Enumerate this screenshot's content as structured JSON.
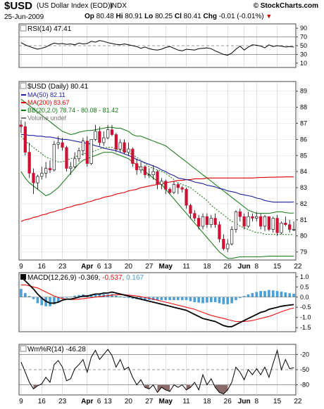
{
  "header": {
    "symbol": "$USD",
    "name": "(US Dollar Index (EOD))",
    "exchange": "INDX",
    "site": "© StockCharts.com",
    "date": "25-Jun-2009",
    "open_label": "Op",
    "open": "80.48",
    "high_label": "Hi",
    "high": "80.91",
    "low_label": "Lo",
    "low": "80.25",
    "close_label": "Cl",
    "close": "80.41",
    "change_label": "Chg",
    "change": "-0.01 (-0.01%)"
  },
  "colors": {
    "up": "#ffffff",
    "down": "#cc1133",
    "ma50": "#1e1e9e",
    "ma200": "#dd0000",
    "bb": "#117711",
    "macd": "#000000",
    "signal": "#ee1111",
    "hist": "#4aa0d8",
    "rsi_over": "#9a7272",
    "wpr_over": "#8a6a6a",
    "wpr_under": "#5c8f5c"
  },
  "chart_data": [
    {
      "type": "line",
      "title": "RSI(14) 47.41",
      "yticks": [
        90,
        70,
        50,
        30,
        10
      ],
      "ylim": [
        0,
        100
      ],
      "guides": [
        70,
        50,
        30
      ],
      "values": [
        57,
        52,
        48,
        45,
        42,
        44,
        47,
        52,
        56,
        54,
        55,
        53,
        54,
        52,
        56,
        54,
        55,
        60,
        58,
        62,
        60,
        57,
        55,
        53,
        52,
        54,
        52,
        50,
        48,
        44,
        47,
        43,
        41,
        40,
        42,
        46,
        48,
        44,
        40,
        38,
        42,
        41,
        40,
        43,
        44,
        45,
        43,
        38,
        34,
        30,
        28,
        33,
        42,
        49,
        40,
        47,
        52,
        51,
        49,
        45,
        52,
        48,
        50,
        49,
        47,
        48,
        47
      ]
    },
    {
      "type": "candlestick",
      "title": "$USD (Daily) 80.41",
      "legend": [
        {
          "name": "MA(50) 82.11",
          "color": "#1e1e9e"
        },
        {
          "name": "MA(200) 83.67",
          "color": "#dd0000"
        },
        {
          "name": "BB(20,2.0) 78.74 - 80.08 - 81.42",
          "color": "#117711"
        },
        {
          "name": "Volume undef",
          "color": "#777777"
        }
      ],
      "yticks": [
        89,
        88,
        87,
        86,
        85,
        84,
        83,
        82,
        81,
        80,
        79
      ],
      "ylim": [
        78.5,
        89.6
      ],
      "xticks": [
        {
          "label": "9",
          "i": 0
        },
        {
          "label": "16",
          "i": 5
        },
        {
          "label": "23",
          "i": 10
        },
        {
          "label": "Apr",
          "i": 16
        },
        {
          "label": "6",
          "i": 16
        },
        {
          "label": "13",
          "i": 21
        },
        {
          "label": "20",
          "i": 26
        },
        {
          "label": "27",
          "i": 31
        },
        {
          "label": "May",
          "i": 35
        },
        {
          "label": "11",
          "i": 40
        },
        {
          "label": "18",
          "i": 45
        },
        {
          "label": "26",
          "i": 50
        },
        {
          "label": "Jun",
          "i": 54
        },
        {
          "label": "8",
          "i": 57
        },
        {
          "label": "15",
          "i": 62
        },
        {
          "label": "22",
          "i": 67
        }
      ],
      "open": [
        86.9,
        86.8,
        85.2,
        83.9,
        83.3,
        83.7,
        83.9,
        84.2,
        84.1,
        85.7,
        85.8,
        85.5,
        84.2,
        84.3,
        84.8,
        85.3,
        85.9,
        84.5,
        86.0,
        86.5,
        85.8,
        86.1,
        86.6,
        86.3,
        85.4,
        85.8,
        85.2,
        85.4,
        84.5,
        84.1,
        84.3,
        83.8,
        83.8,
        84.0,
        83.2,
        83.4,
        82.9,
        82.7,
        83.2,
        83.0,
        82.9,
        81.9,
        81.4,
        81.1,
        80.6,
        81.2,
        80.7,
        81.1,
        80.7,
        79.8,
        79.2,
        79.5,
        80.4,
        81.5,
        81.2,
        80.6,
        81.2,
        81.1,
        81.2,
        80.6,
        81.2,
        80.4,
        81.1,
        80.2,
        80.8,
        80.7,
        80.4
      ],
      "high": [
        87.2,
        87.1,
        85.8,
        84.2,
        83.8,
        84.3,
        84.6,
        84.7,
        85.9,
        86.2,
        86.1,
        85.6,
        84.6,
        85.2,
        85.5,
        86.1,
        86.2,
        85.9,
        86.9,
        86.8,
        86.5,
        86.9,
        86.9,
        86.4,
        86.0,
        86.0,
        85.8,
        85.5,
        84.8,
        84.6,
        84.4,
        84.2,
        84.4,
        84.1,
        83.6,
        83.5,
        83.0,
        83.4,
        83.3,
        83.1,
        83.0,
        82.0,
        81.6,
        81.3,
        81.4,
        81.4,
        81.3,
        81.4,
        80.9,
        80.1,
        79.8,
        80.6,
        81.6,
        81.7,
        81.4,
        81.5,
        81.4,
        81.5,
        81.4,
        81.3,
        81.2,
        81.2,
        81.3,
        80.9,
        81.2,
        81.0,
        80.9
      ],
      "low": [
        86.4,
        85.0,
        83.6,
        82.6,
        82.9,
        83.5,
        83.6,
        83.9,
        84.0,
        85.4,
        85.3,
        84.0,
        83.8,
        84.2,
        84.6,
        85.0,
        84.3,
        84.4,
        85.9,
        85.6,
        85.6,
        86.0,
        86.2,
        85.2,
        85.2,
        85.1,
        85.0,
        84.3,
        83.8,
        83.9,
        83.6,
        83.6,
        83.5,
        82.9,
        82.9,
        82.6,
        82.6,
        82.6,
        82.6,
        82.7,
        81.7,
        81.1,
        80.9,
        80.4,
        80.4,
        80.5,
        80.5,
        80.5,
        79.6,
        79.1,
        79.0,
        79.4,
        80.2,
        80.9,
        80.4,
        80.5,
        80.9,
        80.9,
        80.4,
        80.3,
        80.3,
        80.2,
        80.0,
        80.1,
        80.6,
        80.2,
        80.3
      ],
      "close": [
        86.8,
        85.2,
        83.9,
        83.3,
        83.7,
        83.9,
        84.2,
        84.1,
        85.7,
        85.8,
        85.5,
        84.2,
        84.3,
        84.8,
        85.3,
        85.9,
        84.5,
        86.0,
        86.5,
        85.8,
        86.1,
        86.6,
        86.3,
        85.4,
        85.8,
        85.2,
        85.4,
        84.5,
        84.1,
        84.3,
        83.8,
        83.8,
        84.0,
        83.2,
        83.4,
        82.9,
        82.7,
        83.2,
        83.0,
        82.9,
        81.9,
        81.4,
        81.1,
        80.6,
        81.2,
        80.7,
        81.1,
        80.7,
        79.8,
        79.2,
        79.5,
        80.4,
        81.5,
        81.2,
        80.6,
        81.2,
        81.1,
        81.2,
        80.6,
        81.2,
        80.4,
        81.1,
        80.2,
        80.8,
        80.7,
        80.4,
        80.41
      ],
      "ma50": [
        86.3,
        86.3,
        86.25,
        86.25,
        86.2,
        86.2,
        86.15,
        86.15,
        86.1,
        86.05,
        86.0,
        86.0,
        85.95,
        85.9,
        85.85,
        85.8,
        85.75,
        85.7,
        85.6,
        85.55,
        85.45,
        85.4,
        85.35,
        85.3,
        85.2,
        85.1,
        85.0,
        84.9,
        84.75,
        84.65,
        84.55,
        84.45,
        84.35,
        84.25,
        84.1,
        84.0,
        83.85,
        83.75,
        83.6,
        83.55,
        83.5,
        83.45,
        83.35,
        83.3,
        83.25,
        83.15,
        83.1,
        83.05,
        82.95,
        82.9,
        82.8,
        82.75,
        82.7,
        82.6,
        82.55,
        82.5,
        82.45,
        82.35,
        82.3,
        82.2,
        82.15,
        82.1,
        82.1,
        82.1,
        82.1,
        82.1,
        82.11
      ],
      "ma200": [
        80.9,
        81.0,
        81.05,
        81.15,
        81.2,
        81.3,
        81.35,
        81.45,
        81.5,
        81.6,
        81.65,
        81.75,
        81.8,
        81.9,
        81.95,
        82.0,
        82.1,
        82.15,
        82.25,
        82.3,
        82.4,
        82.45,
        82.5,
        82.6,
        82.65,
        82.7,
        82.8,
        82.85,
        82.9,
        83.0,
        83.05,
        83.1,
        83.15,
        83.2,
        83.25,
        83.3,
        83.35,
        83.4,
        83.45,
        83.45,
        83.5,
        83.5,
        83.55,
        83.55,
        83.55,
        83.6,
        83.6,
        83.6,
        83.6,
        83.6,
        83.6,
        83.6,
        83.6,
        83.6,
        83.6,
        83.6,
        83.6,
        83.62,
        83.63,
        83.64,
        83.65,
        83.65,
        83.66,
        83.66,
        83.67,
        83.67,
        83.67
      ],
      "bb_mid": [
        86.2,
        85.9,
        85.7,
        85.5,
        85.3,
        85.1,
        84.9,
        84.8,
        84.7,
        84.6,
        84.6,
        84.7,
        84.8,
        84.9,
        85.0,
        85.1,
        85.15,
        85.2,
        85.3,
        85.4,
        85.5,
        85.5,
        85.5,
        85.4,
        85.35,
        85.3,
        85.2,
        85.0,
        84.9,
        84.7,
        84.5,
        84.3,
        84.2,
        84.1,
        84.0,
        83.9,
        83.7,
        83.5,
        83.3,
        83.2,
        83.1,
        83.0,
        82.8,
        82.6,
        82.4,
        82.2,
        81.9,
        81.7,
        81.5,
        81.3,
        81.1,
        80.9,
        80.8,
        80.6,
        80.5,
        80.4,
        80.3,
        80.2,
        80.2,
        80.1,
        80.1,
        80.1,
        80.1,
        80.1,
        80.08,
        80.08,
        80.08
      ],
      "bb_upper": [
        88.5,
        88.3,
        88.1,
        87.9,
        87.7,
        87.5,
        87.3,
        87.1,
        86.9,
        86.7,
        86.5,
        86.4,
        86.3,
        86.35,
        86.45,
        86.5,
        86.55,
        86.55,
        86.6,
        86.65,
        86.7,
        86.75,
        86.75,
        86.7,
        86.7,
        86.6,
        86.5,
        86.3,
        86.2,
        86.2,
        86.1,
        86.0,
        85.9,
        85.8,
        85.7,
        85.6,
        85.4,
        85.2,
        85.0,
        84.8,
        84.6,
        84.4,
        84.2,
        84.0,
        83.8,
        83.6,
        83.4,
        83.2,
        83.0,
        82.8,
        82.6,
        82.4,
        82.2,
        82.0,
        81.8,
        81.6,
        81.5,
        81.4,
        81.4,
        81.4,
        81.4,
        81.45,
        81.5,
        81.5,
        81.45,
        81.42,
        81.42
      ],
      "bb_lower": [
        84.0,
        83.6,
        83.3,
        83.1,
        82.9,
        82.7,
        82.5,
        82.6,
        82.8,
        83.0,
        83.3,
        83.6,
        83.9,
        84.2,
        84.5,
        84.7,
        84.8,
        84.9,
        85.0,
        85.1,
        85.2,
        85.2,
        85.2,
        85.1,
        85.0,
        84.9,
        84.8,
        84.6,
        84.4,
        84.2,
        84.0,
        83.8,
        83.6,
        83.4,
        83.2,
        82.9,
        82.6,
        82.3,
        82.0,
        81.7,
        81.4,
        81.1,
        80.8,
        80.5,
        80.2,
        79.9,
        79.6,
        79.3,
        79.0,
        78.8,
        78.6,
        78.6,
        78.65,
        78.7,
        78.7,
        78.7,
        78.7,
        78.7,
        78.7,
        78.72,
        78.74,
        78.74,
        78.74,
        78.74,
        78.74,
        78.74,
        78.74
      ]
    },
    {
      "type": "line",
      "title": "MACD(12,26,9)",
      "values_label": [
        "-0.369",
        "-0.537",
        "0.167"
      ],
      "yticks": [
        1.0,
        0.5,
        0.0,
        -0.5,
        -1.0,
        -1.5
      ],
      "ylim": [
        -1.7,
        1.2
      ],
      "macd": [
        1.0,
        0.8,
        0.6,
        0.4,
        0.15,
        -0.05,
        -0.2,
        -0.3,
        -0.3,
        -0.25,
        -0.15,
        -0.1,
        -0.1,
        -0.05,
        0.0,
        0.05,
        0.05,
        0.1,
        0.15,
        0.15,
        0.2,
        0.2,
        0.25,
        0.2,
        0.15,
        0.1,
        0.05,
        0.0,
        -0.05,
        -0.1,
        -0.15,
        -0.2,
        -0.25,
        -0.3,
        -0.35,
        -0.4,
        -0.45,
        -0.5,
        -0.55,
        -0.6,
        -0.65,
        -0.75,
        -0.85,
        -0.95,
        -1.05,
        -1.1,
        -1.15,
        -1.2,
        -1.3,
        -1.4,
        -1.45,
        -1.45,
        -1.35,
        -1.25,
        -1.15,
        -1.05,
        -0.95,
        -0.85,
        -0.75,
        -0.7,
        -0.6,
        -0.55,
        -0.5,
        -0.45,
        -0.42,
        -0.39,
        -0.369
      ],
      "signal": [
        0.6,
        0.6,
        0.55,
        0.5,
        0.45,
        0.35,
        0.25,
        0.15,
        0.05,
        -0.02,
        -0.07,
        -0.1,
        -0.12,
        -0.12,
        -0.1,
        -0.08,
        -0.05,
        -0.03,
        0.0,
        0.02,
        0.05,
        0.07,
        0.1,
        0.12,
        0.12,
        0.12,
        0.1,
        0.08,
        0.05,
        0.02,
        -0.02,
        -0.06,
        -0.1,
        -0.15,
        -0.2,
        -0.25,
        -0.3,
        -0.35,
        -0.4,
        -0.45,
        -0.5,
        -0.55,
        -0.6,
        -0.68,
        -0.75,
        -0.83,
        -0.9,
        -0.95,
        -1.0,
        -1.05,
        -1.1,
        -1.15,
        -1.2,
        -1.2,
        -1.2,
        -1.18,
        -1.15,
        -1.1,
        -1.05,
        -1.0,
        -0.95,
        -0.88,
        -0.8,
        -0.72,
        -0.65,
        -0.58,
        -0.537
      ]
    },
    {
      "type": "line",
      "title": "Wm%R(14) -46.28",
      "yticks": [
        -20,
        -50,
        -80
      ],
      "ylim": [
        -100,
        0
      ],
      "guides": [
        -20,
        -50,
        -80
      ],
      "values": [
        -35,
        -55,
        -75,
        -88,
        -82,
        -78,
        -65,
        -75,
        -40,
        -32,
        -45,
        -72,
        -68,
        -48,
        -40,
        -30,
        -55,
        -25,
        -12,
        -30,
        -20,
        -10,
        -22,
        -45,
        -30,
        -50,
        -45,
        -65,
        -80,
        -70,
        -85,
        -88,
        -80,
        -95,
        -85,
        -90,
        -93,
        -80,
        -85,
        -80,
        -90,
        -85,
        -75,
        -90,
        -60,
        -80,
        -68,
        -85,
        -95,
        -98,
        -90,
        -75,
        -45,
        -55,
        -70,
        -50,
        -60,
        -48,
        -60,
        -45,
        -65,
        -38,
        -12,
        -50,
        -30,
        -48,
        -46.28
      ]
    }
  ]
}
